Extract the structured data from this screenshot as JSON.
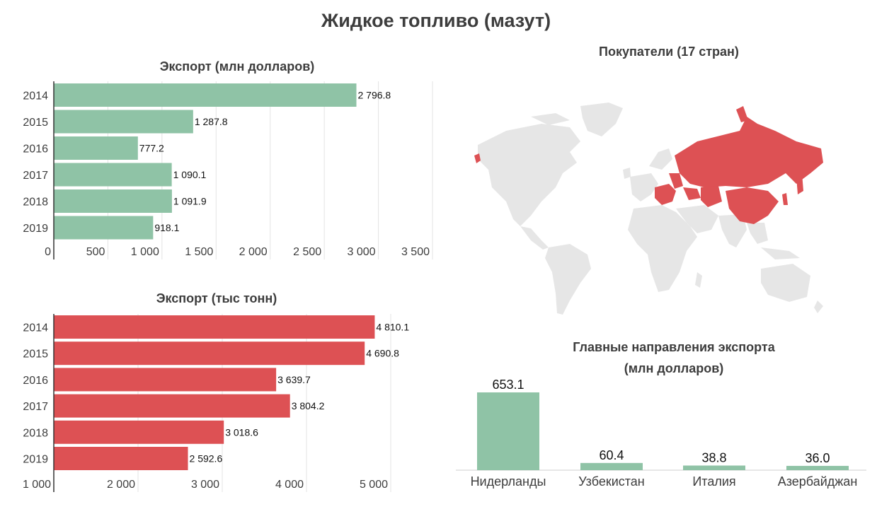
{
  "title": "Жидкое топливо (мазут)",
  "chart_data": [
    {
      "type": "bar",
      "orientation": "horizontal",
      "title": "Экспорт (млн долларов)",
      "categories": [
        "2014",
        "2015",
        "2016",
        "2017",
        "2018",
        "2019"
      ],
      "values": [
        2796.8,
        1287.8,
        777.2,
        1090.1,
        1091.9,
        918.1
      ],
      "value_labels": [
        "2 796.8",
        "1 287.8",
        "777.2",
        "1 090.1",
        "1 091.9",
        "918.1"
      ],
      "xlim": [
        0,
        3500
      ],
      "ticks": [
        0,
        500,
        1000,
        1500,
        2000,
        2500,
        3000,
        3500
      ],
      "tick_labels": [
        "0",
        "500",
        "1 000",
        "1 500",
        "2 000",
        "2 500",
        "3 000",
        "3 500"
      ],
      "color": "#8fc3a6",
      "grid": true
    },
    {
      "type": "bar",
      "orientation": "horizontal",
      "title": "Экспорт (тыс тонн)",
      "categories": [
        "2014",
        "2015",
        "2016",
        "2017",
        "2018",
        "2019"
      ],
      "values": [
        4810.1,
        4690.8,
        3639.7,
        3804.2,
        3018.6,
        2592.6
      ],
      "value_labels": [
        "4 810.1",
        "4 690.8",
        "3 639.7",
        "3 804.2",
        "3 018.6",
        "2 592.6"
      ],
      "xlim": [
        1000,
        5000
      ],
      "ticks": [
        1000,
        2000,
        3000,
        4000,
        5000
      ],
      "tick_labels": [
        "1 000",
        "2 000",
        "3 000",
        "4 000",
        "5 000"
      ],
      "color": "#dd5154",
      "grid": true
    },
    {
      "type": "bar",
      "orientation": "vertical",
      "title": "Главные направления экспорта",
      "subtitle": "(млн долларов)",
      "categories": [
        "Нидерланды",
        "Узбекистан",
        "Италия",
        "Азербайджан"
      ],
      "values": [
        653.1,
        60.4,
        38.8,
        36.0
      ],
      "value_labels": [
        "653.1",
        "60.4",
        "38.8",
        "36.0"
      ],
      "ylim": [
        0,
        653.1
      ],
      "color": "#8fc3a6",
      "grid": false
    }
  ],
  "map": {
    "title": "Покупатели (17 стран)",
    "highlight_color": "#dd5154",
    "base_color": "#e6e6e6"
  }
}
